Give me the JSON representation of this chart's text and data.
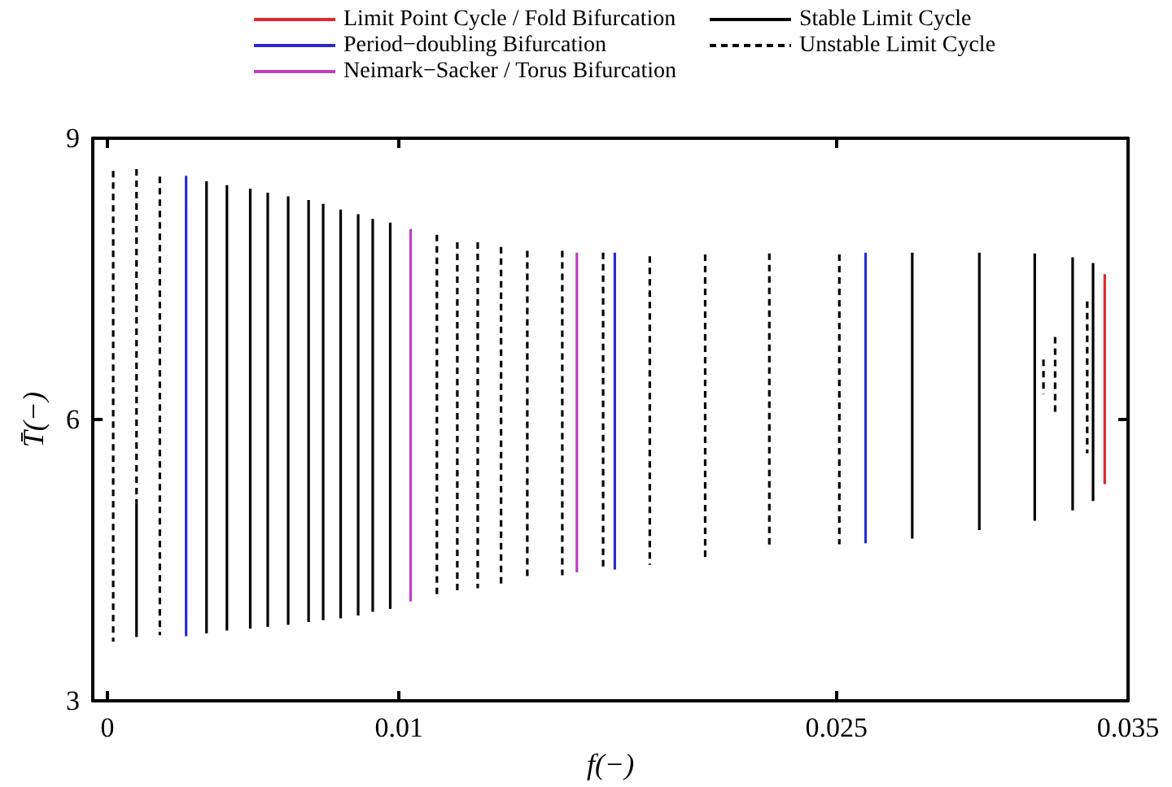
{
  "chart_data": {
    "type": "line",
    "xlabel": "f(−)",
    "ylabel": "T̄(−)",
    "xlim": [
      -0.0005,
      0.035
    ],
    "xticks": [
      0,
      0.01,
      0.025,
      0.035
    ],
    "ylim": [
      3,
      9
    ],
    "yticks": [
      3,
      6,
      9
    ],
    "grid": false,
    "legend": "top",
    "marker": "none",
    "series": [
      {
        "name": "Limit Point Cycle / Fold Bifurcation",
        "color": "#e0282e",
        "line_style": "solid",
        "x": [
          0.0342,
          0.0342
        ],
        "values": [
          7.55,
          5.31
        ]
      },
      {
        "name": "Period−doubling Bifurcation",
        "color": "#2b2bd0",
        "line_style": "solid",
        "x": [
          0.0027,
          0.0027,
          null,
          0.0174,
          0.0174,
          null,
          0.026,
          0.026
        ],
        "values": [
          8.6,
          3.69,
          null,
          7.78,
          4.4,
          null,
          7.78,
          4.68
        ]
      },
      {
        "name": "Neimark−Sacker / Torus Bifurcation",
        "color": "#c03fc0",
        "line_style": "solid",
        "x": [
          0.0104,
          0.0104,
          null,
          0.0161,
          0.0161
        ],
        "values": [
          8.03,
          4.06,
          null,
          7.78,
          4.37
        ]
      },
      {
        "name": "Stable Limit Cycle",
        "color": "#000000",
        "line_style": "solid",
        "x": [
          0.001,
          0.001,
          null,
          0.0034,
          0.0034,
          null,
          0.0041,
          0.0041,
          null,
          0.0049,
          0.0049,
          null,
          0.0055,
          0.0055,
          null,
          0.0062,
          0.0062,
          null,
          0.0069,
          0.0069,
          null,
          0.0074,
          0.0074,
          null,
          0.008,
          0.008,
          null,
          0.0086,
          0.0086,
          null,
          0.0091,
          0.0091,
          null,
          0.0097,
          0.0097,
          null,
          0.0276,
          0.0276,
          null,
          0.0299,
          0.0299,
          null,
          0.0318,
          0.0318,
          null,
          0.0331,
          0.0331,
          null,
          0.0338,
          0.0338
        ],
        "values": [
          5.11,
          3.68,
          null,
          8.54,
          3.72,
          null,
          8.5,
          3.75,
          null,
          8.46,
          3.77,
          null,
          8.42,
          3.79,
          null,
          8.38,
          3.81,
          null,
          8.34,
          3.84,
          null,
          8.3,
          3.86,
          null,
          8.24,
          3.88,
          null,
          8.19,
          3.91,
          null,
          8.14,
          3.95,
          null,
          8.1,
          3.98,
          null,
          7.78,
          4.73,
          null,
          7.78,
          4.82,
          null,
          7.77,
          4.92,
          null,
          7.73,
          5.03,
          null,
          7.67,
          5.13
        ]
      },
      {
        "name": "Unstable Limit Cycle",
        "color": "#000000",
        "line_style": "dashed",
        "x": [
          0.0002,
          0.0002,
          null,
          0.001,
          0.001,
          null,
          0.0018,
          0.0018,
          null,
          0.0113,
          0.0113,
          null,
          0.012,
          0.012,
          null,
          0.0127,
          0.0127,
          null,
          0.0135,
          0.0135,
          null,
          0.0144,
          0.0144,
          null,
          0.0156,
          0.0156,
          null,
          0.017,
          0.017,
          null,
          0.0186,
          0.0186,
          null,
          0.0205,
          0.0205,
          null,
          0.0227,
          0.0227,
          null,
          0.0251,
          0.0251,
          null,
          0.0321,
          0.0321,
          null,
          0.0325,
          0.0325,
          null,
          0.0336,
          0.0336
        ],
        "values": [
          8.65,
          3.63,
          null,
          8.67,
          5.11,
          null,
          8.59,
          3.7,
          null,
          7.97,
          4.12,
          null,
          7.89,
          4.16,
          null,
          7.89,
          4.2,
          null,
          7.84,
          4.24,
          null,
          7.8,
          4.3,
          null,
          7.8,
          4.34,
          null,
          7.78,
          4.4,
          null,
          7.74,
          4.45,
          null,
          7.76,
          4.51,
          null,
          7.77,
          4.63,
          null,
          7.76,
          4.67,
          null,
          6.64,
          6.27,
          null,
          6.88,
          6.03,
          null,
          7.26,
          5.64
        ]
      }
    ]
  }
}
